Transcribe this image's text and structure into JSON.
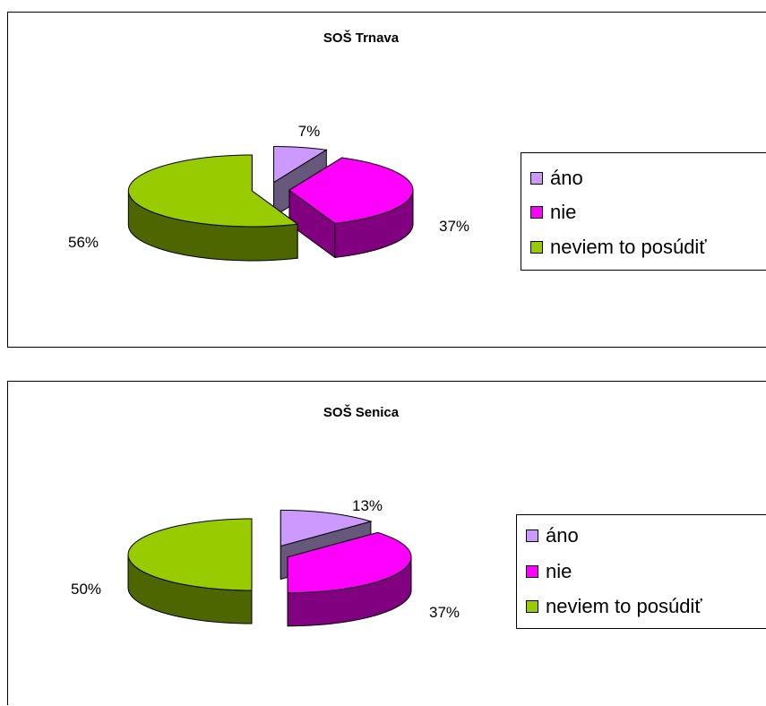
{
  "chart_data": [
    {
      "type": "pie",
      "title": "SOŠ Trnava",
      "categories": [
        "áno",
        "nie",
        "neviem to posúdiť"
      ],
      "values": [
        7,
        37,
        56
      ],
      "value_labels": [
        "7%",
        "37%",
        "56%"
      ],
      "colors": [
        "#cc99ff",
        "#ff00ff",
        "#99cc00"
      ],
      "side_colors": [
        "#66587a",
        "#800080",
        "#4d6600"
      ],
      "legend_position": "right",
      "exploded": true,
      "style": "3d"
    },
    {
      "type": "pie",
      "title": "SOŠ Senica",
      "categories": [
        "áno",
        "nie",
        "neviem to posúdiť"
      ],
      "values": [
        13,
        37,
        50
      ],
      "value_labels": [
        "13%",
        "37%",
        "50%"
      ],
      "colors": [
        "#cc99ff",
        "#ff00ff",
        "#99cc00"
      ],
      "side_colors": [
        "#66587a",
        "#800080",
        "#4d6600"
      ],
      "legend_position": "right",
      "exploded": true,
      "style": "3d"
    }
  ]
}
